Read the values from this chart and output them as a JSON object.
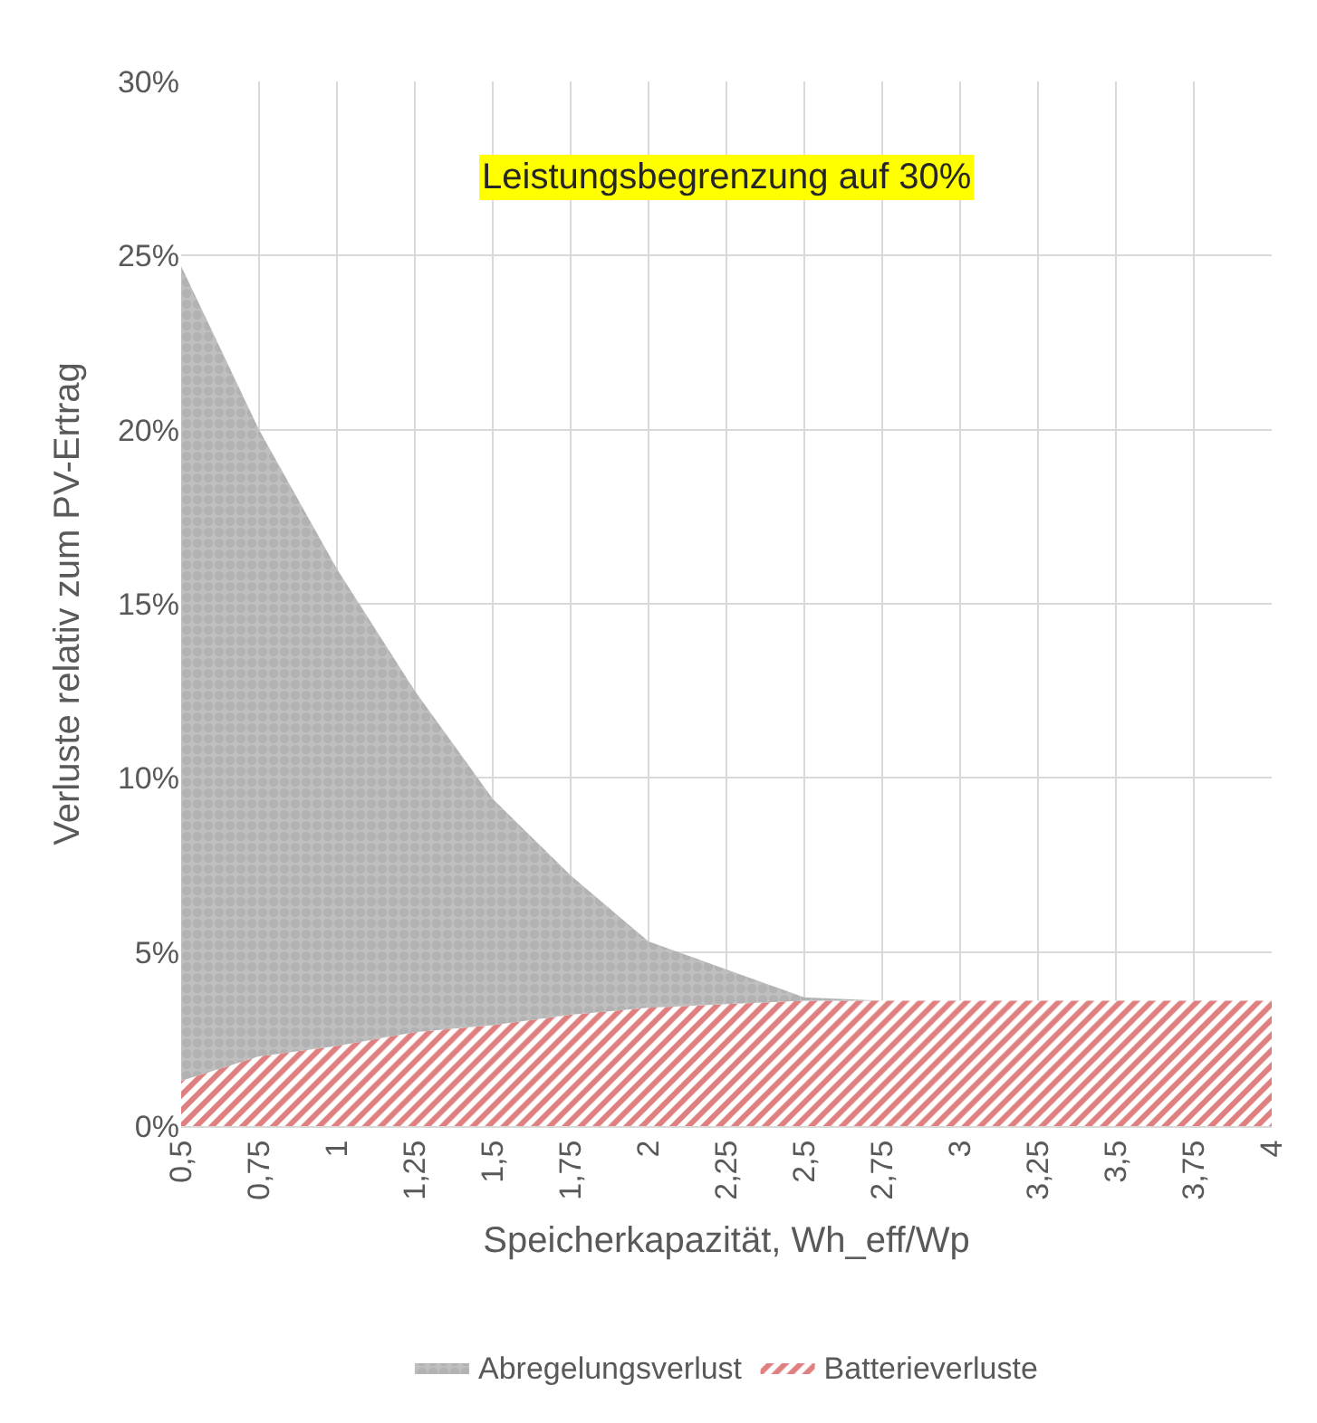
{
  "chart_data": {
    "type": "area",
    "title": "Leistungsbegrenzung auf 30%",
    "xlabel": "Speicherkapazität, Wh_eff/Wp",
    "ylabel": "Verluste relativ zum PV-Ertrag",
    "categories": [
      "0,5",
      "0,75",
      "1",
      "1,25",
      "1,5",
      "1,75",
      "2",
      "2,25",
      "2,5",
      "2,75",
      "3",
      "3,25",
      "3,5",
      "3,75",
      "4"
    ],
    "stacked": true,
    "series": [
      {
        "name": "Batterieverluste",
        "color": "#c00000",
        "values": [
          1.3,
          2.0,
          2.3,
          2.7,
          2.9,
          3.2,
          3.4,
          3.5,
          3.6,
          3.6,
          3.6,
          3.6,
          3.6,
          3.6,
          3.6
        ]
      },
      {
        "name": "Abregelungsverlust",
        "color": "#a6a6a6",
        "values": [
          23.4,
          18.0,
          13.7,
          9.8,
          6.5,
          4.0,
          1.9,
          1.0,
          0.1,
          0,
          0,
          0,
          0,
          0,
          0
        ]
      }
    ],
    "ylim": [
      0,
      30
    ],
    "yticks": [
      {
        "value": 0,
        "label": "0%"
      },
      {
        "value": 5,
        "label": "5%"
      },
      {
        "value": 10,
        "label": "10%"
      },
      {
        "value": 15,
        "label": "15%"
      },
      {
        "value": 20,
        "label": "20%"
      },
      {
        "value": 25,
        "label": "25%"
      },
      {
        "value": 30,
        "label": "30%"
      }
    ],
    "grid": true,
    "legend": "bottom"
  }
}
